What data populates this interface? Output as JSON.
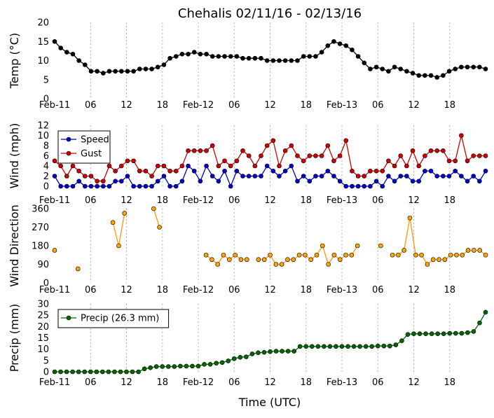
{
  "chart_data": {
    "title": "Chehalis 02/11/16 - 02/13/16",
    "xlabel": "Time (UTC)",
    "x_tick_labels": [
      "Feb-11",
      "06",
      "12",
      "18",
      "Feb-12",
      "06",
      "12",
      "18",
      "Feb-13",
      "06",
      "12",
      "18"
    ],
    "x_tick_hours": [
      0,
      6,
      12,
      18,
      24,
      30,
      36,
      42,
      48,
      54,
      60,
      66
    ],
    "x_range_hours": [
      0,
      72
    ],
    "grid": "dashed vertical at x ticks",
    "panels": [
      {
        "type": "line",
        "ylabel": "Temp ($^\\circ$C)",
        "ylim": [
          0,
          20
        ],
        "yticks": [
          0,
          5,
          10,
          15,
          20
        ],
        "series": [
          {
            "color": "#000000",
            "values": [
              15.0,
              13.3,
              12.2,
              11.7,
              10.0,
              8.9,
              7.2,
              7.2,
              6.7,
              7.2,
              7.2,
              7.2,
              7.2,
              7.2,
              7.8,
              7.8,
              7.8,
              8.3,
              8.9,
              10.6,
              11.1,
              11.7,
              11.7,
              12.2,
              11.7,
              11.7,
              11.1,
              11.1,
              11.1,
              11.1,
              11.1,
              10.6,
              10.6,
              10.6,
              10.6,
              10.0,
              10.0,
              10.0,
              10.0,
              10.0,
              10.0,
              11.1,
              11.1,
              11.1,
              12.2,
              13.9,
              15.0,
              14.4,
              13.9,
              12.8,
              11.1,
              9.4,
              7.8,
              8.3,
              7.8,
              7.2,
              8.3,
              7.8,
              7.2,
              6.7,
              6.1,
              6.1,
              6.1,
              5.6,
              6.1,
              7.2,
              7.8,
              8.3,
              8.3,
              8.3,
              8.3,
              7.8
            ]
          }
        ]
      },
      {
        "type": "line",
        "ylabel": "Wind (mph)",
        "ylim": [
          0,
          12
        ],
        "yticks": [
          0,
          2,
          4,
          6,
          8,
          10,
          12
        ],
        "legend": "top-left",
        "series": [
          {
            "name": "Speed",
            "color": "#0000cc",
            "values": [
              2,
              0,
              0,
              0,
              1,
              0,
              0,
              0,
              0,
              0,
              1,
              1,
              2,
              0,
              0,
              0,
              0,
              1,
              2,
              0,
              0,
              1,
              4,
              3,
              1,
              4,
              2,
              1,
              3,
              0,
              3,
              2,
              2,
              2,
              2,
              4,
              3,
              2,
              3,
              4,
              1,
              2,
              1,
              2,
              2,
              3,
              2,
              1,
              0,
              0,
              0,
              0,
              0,
              1,
              0,
              2,
              1,
              2,
              2,
              1,
              1,
              3,
              3,
              2,
              2,
              2,
              3,
              2,
              1,
              2,
              1,
              3
            ]
          },
          {
            "name": "Gust",
            "color": "#cc0000",
            "values": [
              5,
              4,
              2,
              4,
              3,
              2,
              2,
              1,
              1,
              4,
              3,
              4,
              5,
              5,
              3,
              3,
              2,
              4,
              4,
              3,
              3,
              4,
              7,
              7,
              7,
              7,
              8,
              4,
              5,
              4,
              5,
              7,
              6,
              4,
              6,
              8,
              9,
              4,
              7,
              8,
              6,
              5,
              6,
              6,
              6,
              8,
              5,
              6,
              9,
              3,
              2,
              2,
              3,
              3,
              3,
              5,
              4,
              6,
              4,
              7,
              4,
              6,
              7,
              7,
              7,
              5,
              5,
              10,
              5,
              6,
              6,
              6
            ]
          }
        ]
      },
      {
        "type": "scatter",
        "ylabel": "Wind Direction",
        "ylim": [
          0,
          360
        ],
        "yticks": [
          0,
          90,
          180,
          270,
          360
        ],
        "series": [
          {
            "color": "#ff9900",
            "values": [
              158,
              null,
              null,
              null,
              68,
              null,
              null,
              null,
              null,
              null,
              293,
              180,
              338,
              null,
              null,
              null,
              null,
              360,
              270,
              null,
              null,
              null,
              null,
              null,
              null,
              null,
              135,
              113,
              90,
              135,
              113,
              135,
              113,
              113,
              null,
              113,
              113,
              135,
              90,
              90,
              113,
              113,
              135,
              135,
              113,
              135,
              180,
              90,
              135,
              113,
              135,
              135,
              180,
              null,
              null,
              null,
              180,
              null,
              135,
              135,
              158,
              315,
              135,
              135,
              90,
              113,
              113,
              113,
              135,
              135,
              135,
              158,
              158,
              158,
              135
            ]
          }
        ]
      },
      {
        "type": "line",
        "ylabel": "Precip (mm)",
        "ylim": [
          0,
          30
        ],
        "yticks": [
          0,
          5,
          10,
          15,
          20,
          25,
          30
        ],
        "legend": "top-left",
        "series": [
          {
            "name": "Precip (26.3 mm)",
            "color": "#006600",
            "values": [
              0,
              0,
              0,
              0,
              0,
              0,
              0,
              0,
              0,
              0,
              0,
              0,
              0,
              0,
              0,
              1.3,
              1.8,
              2.3,
              2.3,
              2.3,
              2.3,
              2.5,
              2.5,
              2.5,
              2.5,
              3.3,
              3.3,
              3.8,
              4.1,
              4.8,
              5.8,
              6.4,
              6.6,
              7.9,
              8.4,
              8.6,
              8.9,
              9.1,
              9.1,
              9.1,
              9.1,
              11.2,
              11.2,
              11.2,
              11.2,
              11.2,
              11.2,
              11.2,
              11.2,
              11.2,
              11.2,
              11.2,
              11.2,
              11.2,
              11.4,
              11.4,
              11.4,
              11.9,
              13.7,
              16.5,
              16.8,
              16.8,
              16.8,
              16.8,
              16.8,
              16.8,
              17.0,
              17.0,
              17.0,
              17.3,
              17.8,
              21.6,
              26.3
            ]
          }
        ]
      }
    ]
  }
}
